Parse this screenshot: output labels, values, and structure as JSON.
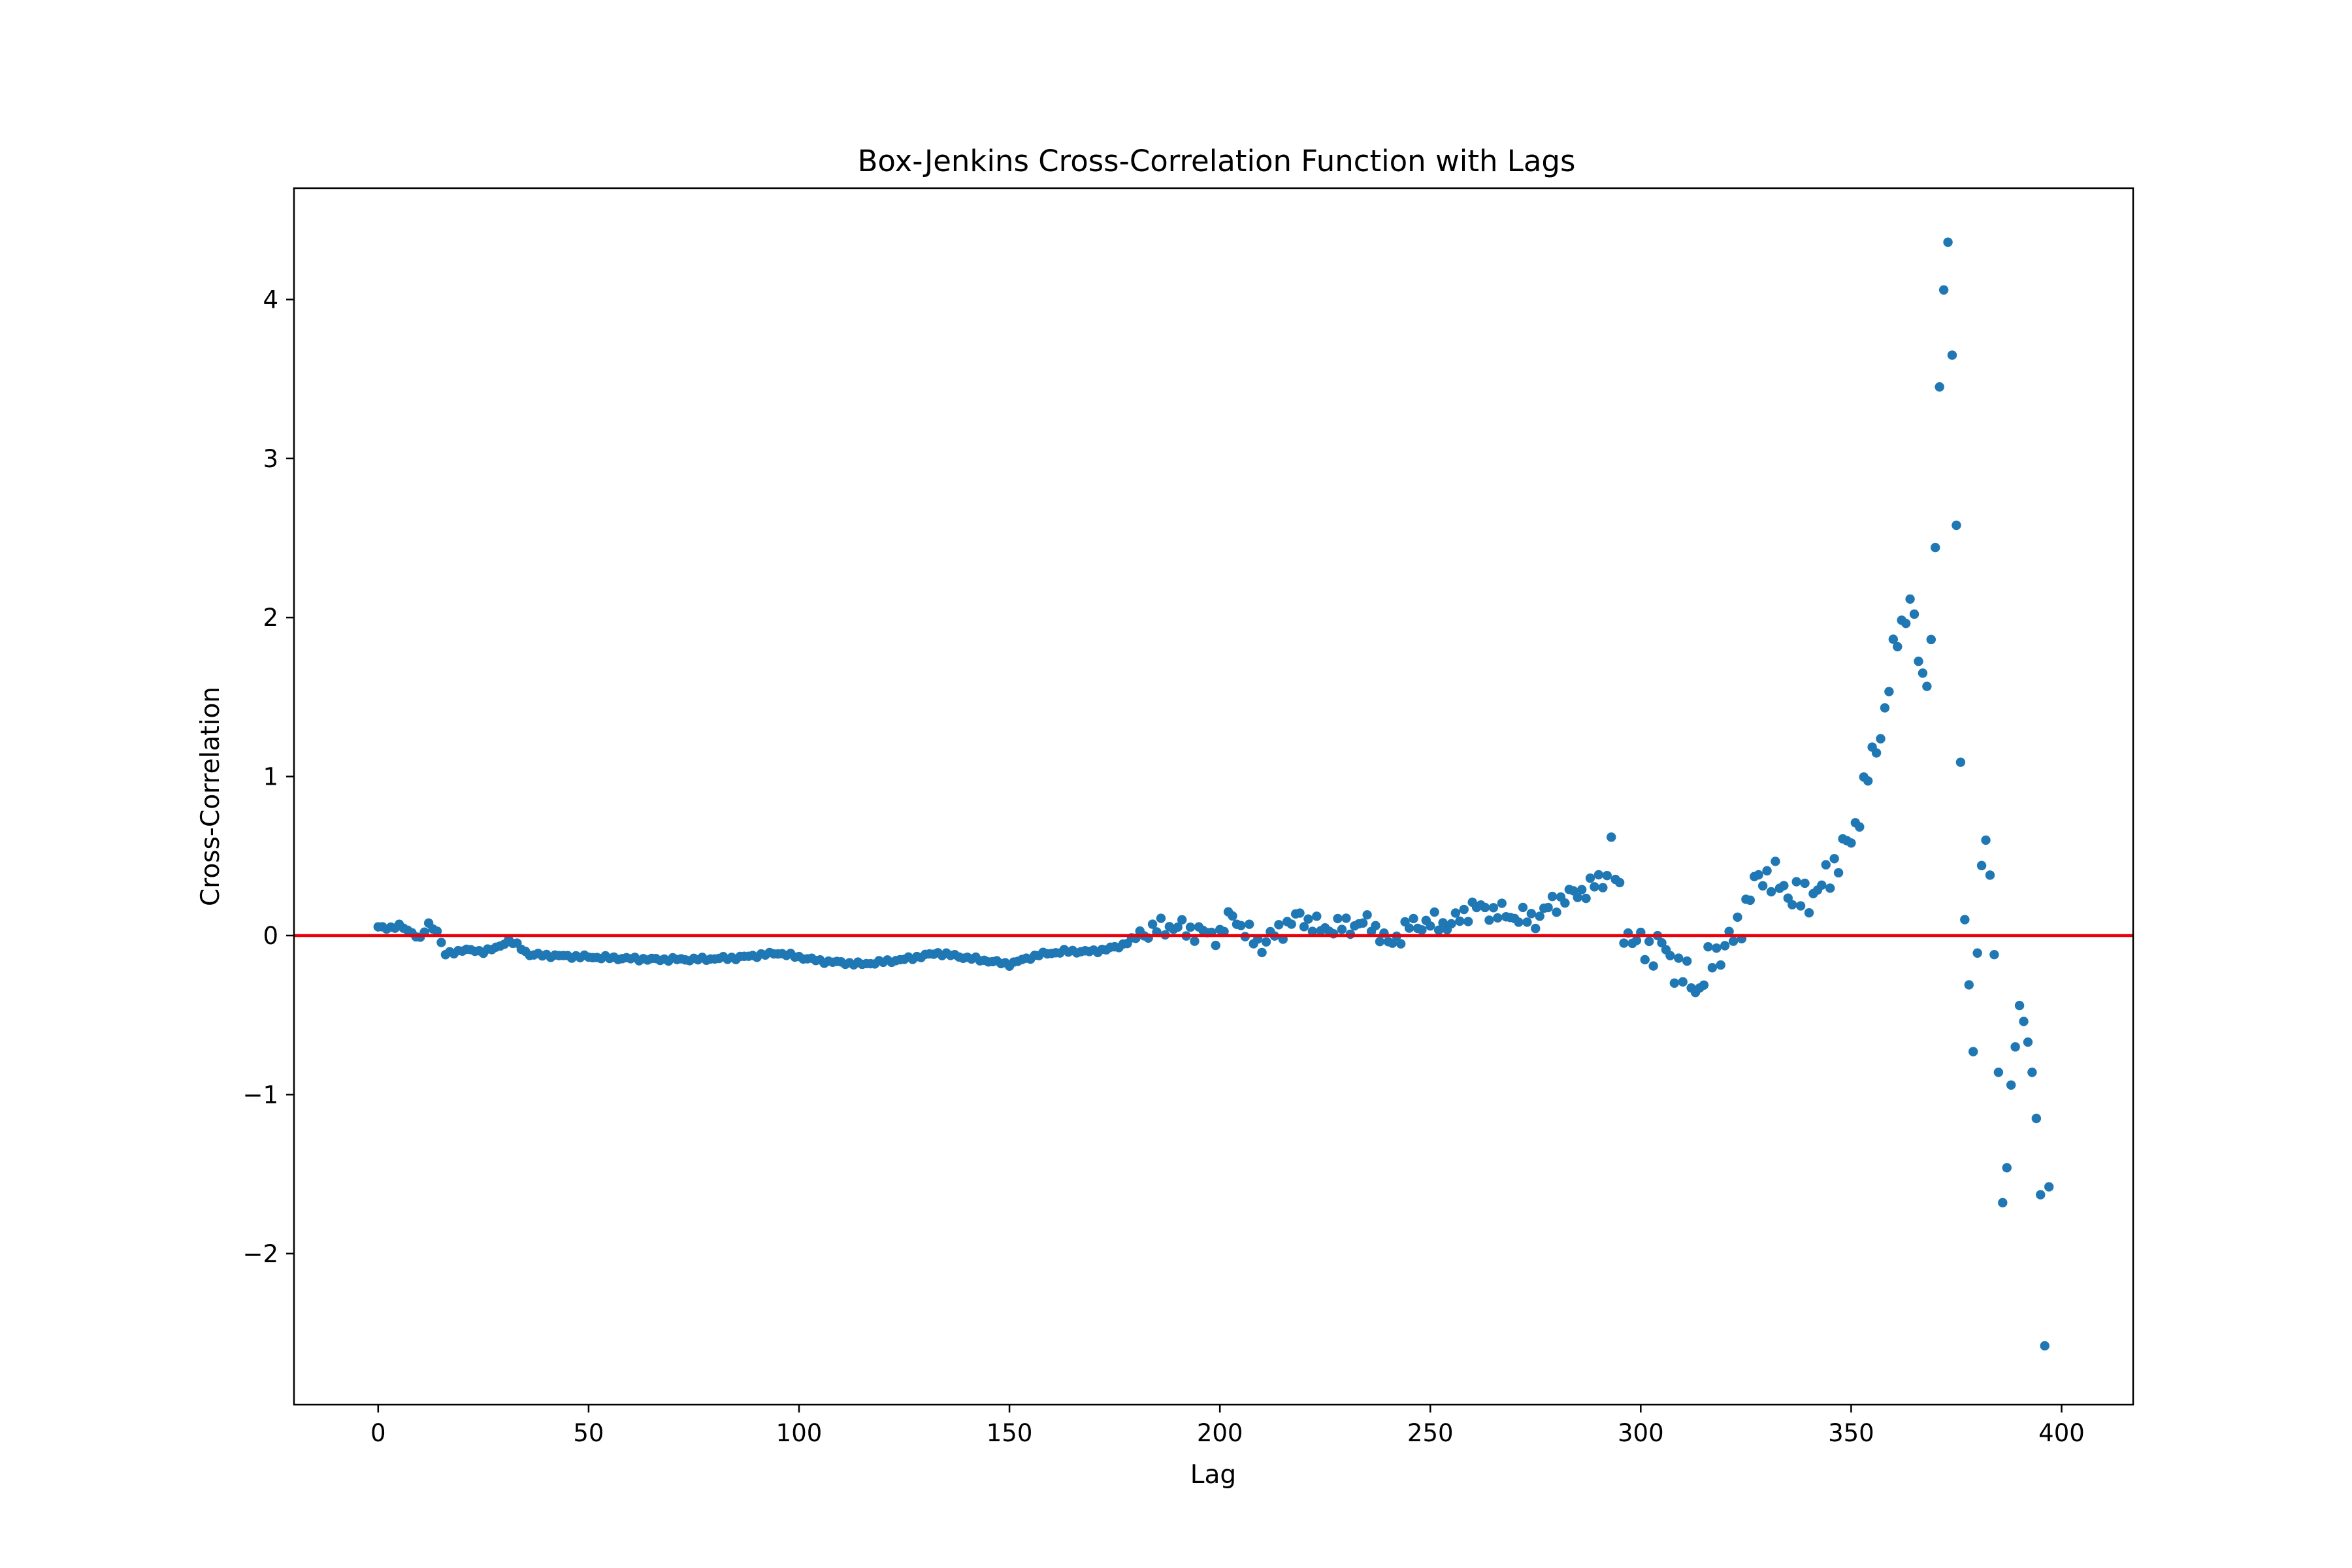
{
  "chart_data": {
    "type": "scatter",
    "title": "Box-Jenkins Cross-Correlation Function with Lags",
    "xlabel": "Lag",
    "ylabel": "Cross-Correlation",
    "xlim": [
      -20,
      417
    ],
    "ylim": [
      -2.95,
      4.7
    ],
    "xticks": [
      0,
      50,
      100,
      150,
      200,
      250,
      300,
      350,
      400
    ],
    "xtick_labels": [
      "0",
      "50",
      "100",
      "150",
      "200",
      "250",
      "300",
      "350",
      "400"
    ],
    "yticks": [
      -2,
      -1,
      0,
      1,
      2,
      3,
      4
    ],
    "ytick_labels": [
      "−2",
      "−1",
      "0",
      "1",
      "2",
      "3",
      "4"
    ],
    "grid": false,
    "reference_line": {
      "y": 0,
      "color": "#e8000b"
    },
    "point_color": "#1f77b4",
    "anchors": [
      [
        0,
        0.05
      ],
      [
        3,
        0.05
      ],
      [
        5,
        0.06
      ],
      [
        8,
        0.02
      ],
      [
        10,
        -0.02
      ],
      [
        12,
        0.07
      ],
      [
        14,
        0.03
      ],
      [
        16,
        -0.12
      ],
      [
        20,
        -0.09
      ],
      [
        25,
        -0.1
      ],
      [
        28,
        -0.08
      ],
      [
        31,
        -0.03
      ],
      [
        33,
        -0.06
      ],
      [
        36,
        -0.12
      ],
      [
        45,
        -0.13
      ],
      [
        55,
        -0.14
      ],
      [
        65,
        -0.15
      ],
      [
        75,
        -0.15
      ],
      [
        85,
        -0.14
      ],
      [
        95,
        -0.11
      ],
      [
        105,
        -0.16
      ],
      [
        115,
        -0.18
      ],
      [
        125,
        -0.15
      ],
      [
        133,
        -0.11
      ],
      [
        140,
        -0.14
      ],
      [
        150,
        -0.18
      ],
      [
        157,
        -0.12
      ],
      [
        163,
        -0.1
      ],
      [
        170,
        -0.1
      ],
      [
        176,
        -0.07
      ],
      [
        182,
        0.02
      ],
      [
        188,
        0.06
      ],
      [
        195,
        0.02
      ],
      [
        200,
        0.0
      ],
      [
        203,
        0.14
      ],
      [
        206,
        0.02
      ],
      [
        210,
        -0.06
      ],
      [
        214,
        0.03
      ],
      [
        219,
        0.12
      ],
      [
        224,
        0.04
      ],
      [
        230,
        0.06
      ],
      [
        236,
        0.08
      ],
      [
        240,
        -0.06
      ],
      [
        245,
        0.06
      ],
      [
        250,
        0.08
      ],
      [
        255,
        0.07
      ],
      [
        260,
        0.18
      ],
      [
        265,
        0.15
      ],
      [
        270,
        0.12
      ],
      [
        275,
        0.1
      ],
      [
        279,
        0.2
      ],
      [
        284,
        0.26
      ],
      [
        288,
        0.3
      ],
      [
        291,
        0.35
      ],
      [
        293,
        0.55
      ],
      [
        296,
        0.05
      ],
      [
        300,
        -0.08
      ],
      [
        305,
        -0.07
      ],
      [
        310,
        -0.25
      ],
      [
        314,
        -0.33
      ],
      [
        317,
        -0.14
      ],
      [
        322,
        -0.02
      ],
      [
        326,
        0.25
      ],
      [
        329,
        0.4
      ],
      [
        334,
        0.3
      ],
      [
        338,
        0.22
      ],
      [
        343,
        0.3
      ],
      [
        346,
        0.45
      ],
      [
        350,
        0.6
      ],
      [
        354,
        1.0
      ],
      [
        358,
        1.4
      ],
      [
        361,
        1.9
      ],
      [
        364,
        2.1
      ],
      [
        367,
        1.6
      ],
      [
        369,
        1.8
      ]
    ],
    "peak_points": [
      [
        370,
        2.44
      ],
      [
        371,
        3.45
      ],
      [
        372,
        4.06
      ],
      [
        373,
        4.36
      ],
      [
        374,
        3.65
      ],
      [
        375,
        2.58
      ],
      [
        376,
        1.09
      ],
      [
        377,
        0.1
      ],
      [
        378,
        -0.31
      ],
      [
        379,
        -0.73
      ],
      [
        380,
        -0.11
      ],
      [
        381,
        0.44
      ],
      [
        382,
        0.6
      ],
      [
        383,
        0.38
      ],
      [
        384,
        -0.12
      ],
      [
        385,
        -0.86
      ],
      [
        386,
        -1.68
      ],
      [
        387,
        -1.46
      ],
      [
        388,
        -0.94
      ],
      [
        389,
        -0.7
      ],
      [
        390,
        -0.44
      ],
      [
        391,
        -0.54
      ],
      [
        392,
        -0.67
      ],
      [
        393,
        -0.86
      ],
      [
        394,
        -1.15
      ],
      [
        395,
        -1.63
      ],
      [
        396,
        -2.58
      ],
      [
        397,
        -1.58
      ]
    ]
  }
}
